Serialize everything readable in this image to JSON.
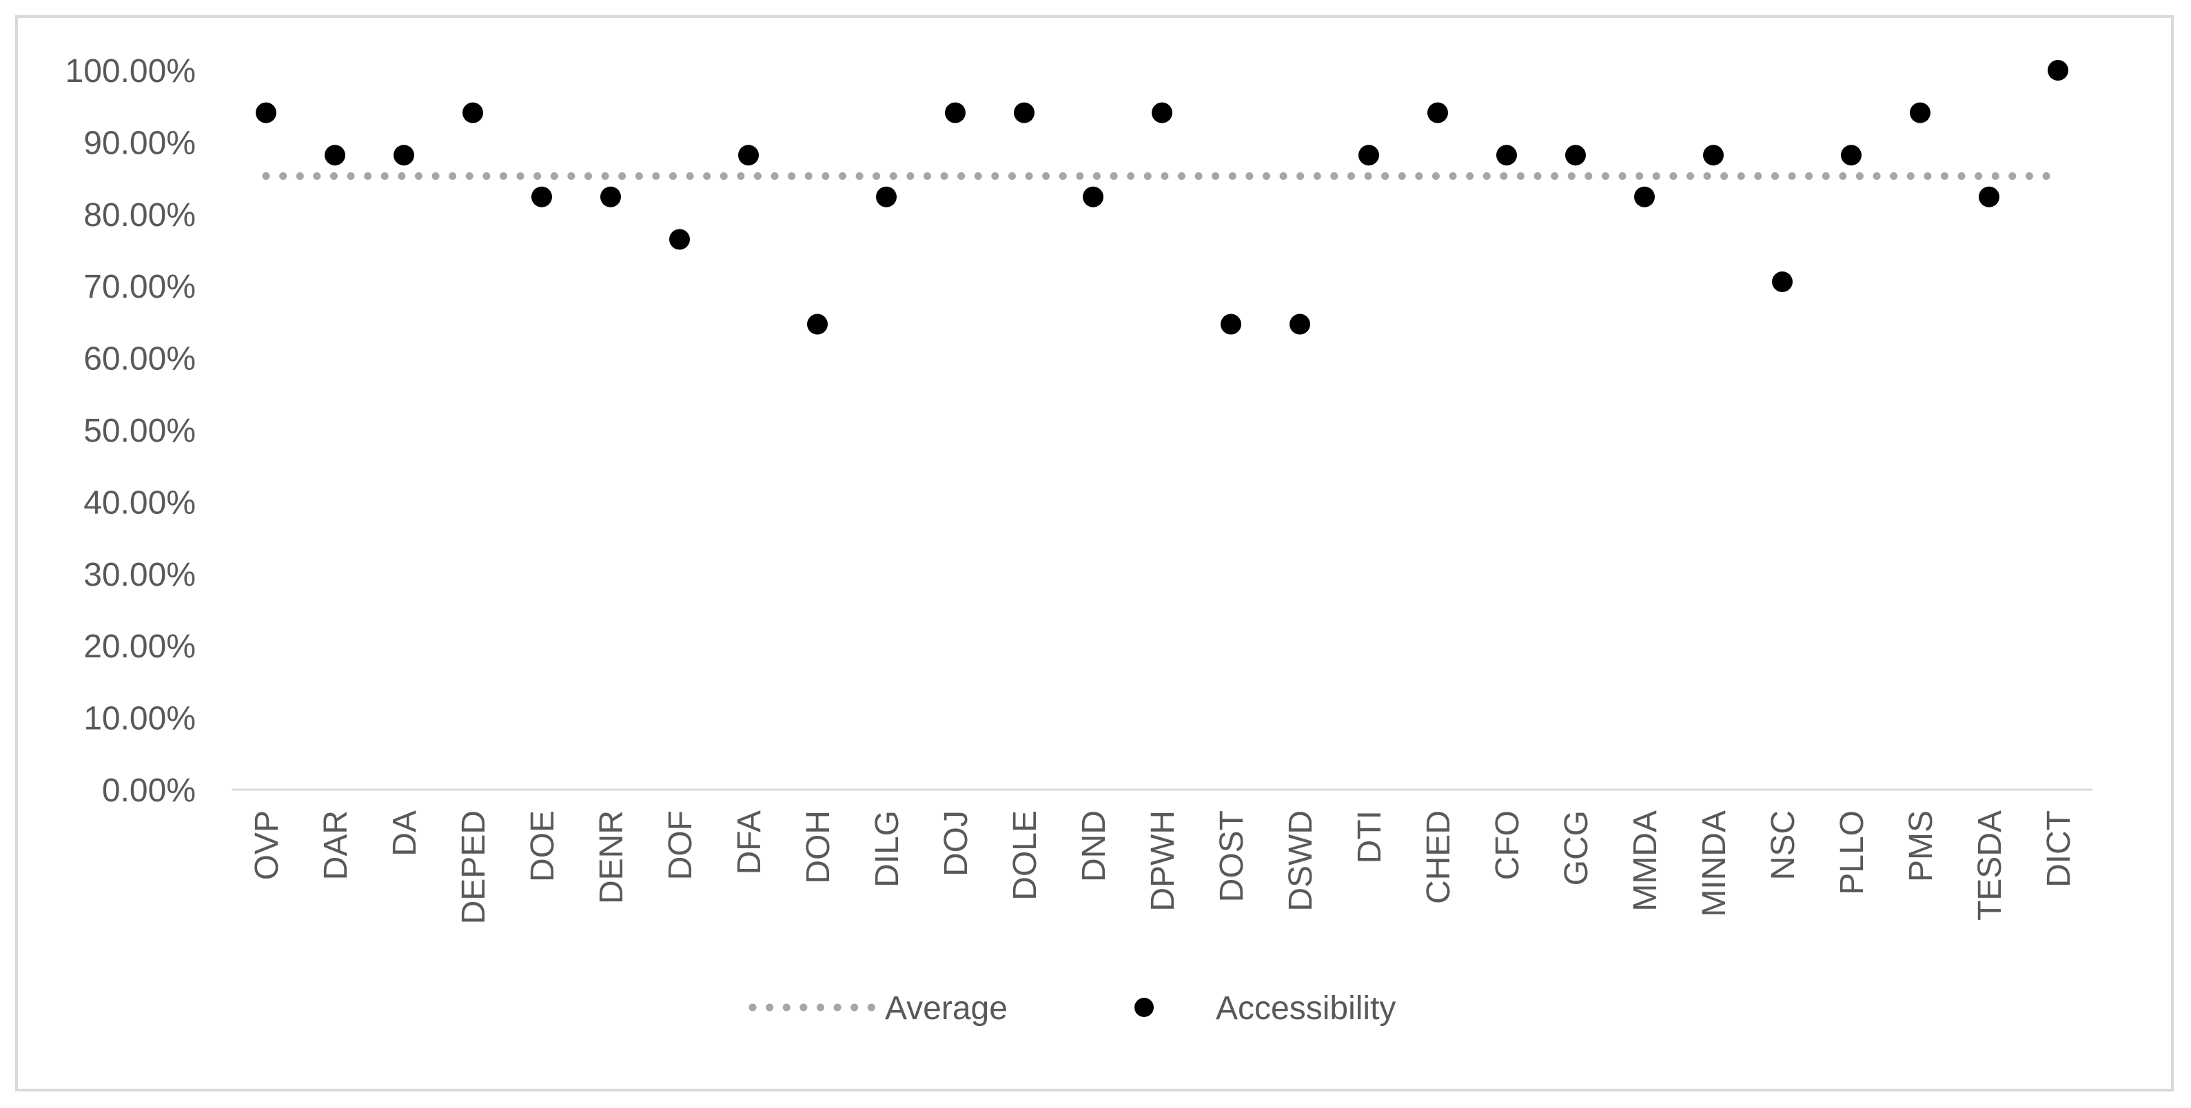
{
  "chart_data": {
    "type": "scatter",
    "title": "",
    "xlabel": "",
    "ylabel": "",
    "ylim": [
      0,
      1
    ],
    "y_ticks": [
      "0.00%",
      "10.00%",
      "20.00%",
      "30.00%",
      "40.00%",
      "50.00%",
      "60.00%",
      "70.00%",
      "80.00%",
      "90.00%",
      "100.00%"
    ],
    "grid": false,
    "legend_position": "bottom",
    "categories": [
      "OVP",
      "DAR",
      "DA",
      "DEPED",
      "DOE",
      "DENR",
      "DOF",
      "DFA",
      "DOH",
      "DILG",
      "DOJ",
      "DOLE",
      "DND",
      "DPWH",
      "DOST",
      "DSWD",
      "DTI",
      "CHED",
      "CFO",
      "GCG",
      "MMDA",
      "MINDA",
      "NSC",
      "PLLO",
      "PMS",
      "TESDA",
      "DICT"
    ],
    "series": [
      {
        "name": "Average",
        "style": "dotted-line",
        "color": "#a6a6a6",
        "value": 0.853
      },
      {
        "name": "Accessibility",
        "style": "marker",
        "color": "#000000",
        "values": [
          0.941,
          0.882,
          0.882,
          0.941,
          0.824,
          0.824,
          0.765,
          0.882,
          0.647,
          0.824,
          0.941,
          0.941,
          0.824,
          0.941,
          0.647,
          0.647,
          0.882,
          0.941,
          0.882,
          0.882,
          0.824,
          0.882,
          0.706,
          0.882,
          0.941,
          0.824,
          1.0
        ]
      }
    ]
  }
}
